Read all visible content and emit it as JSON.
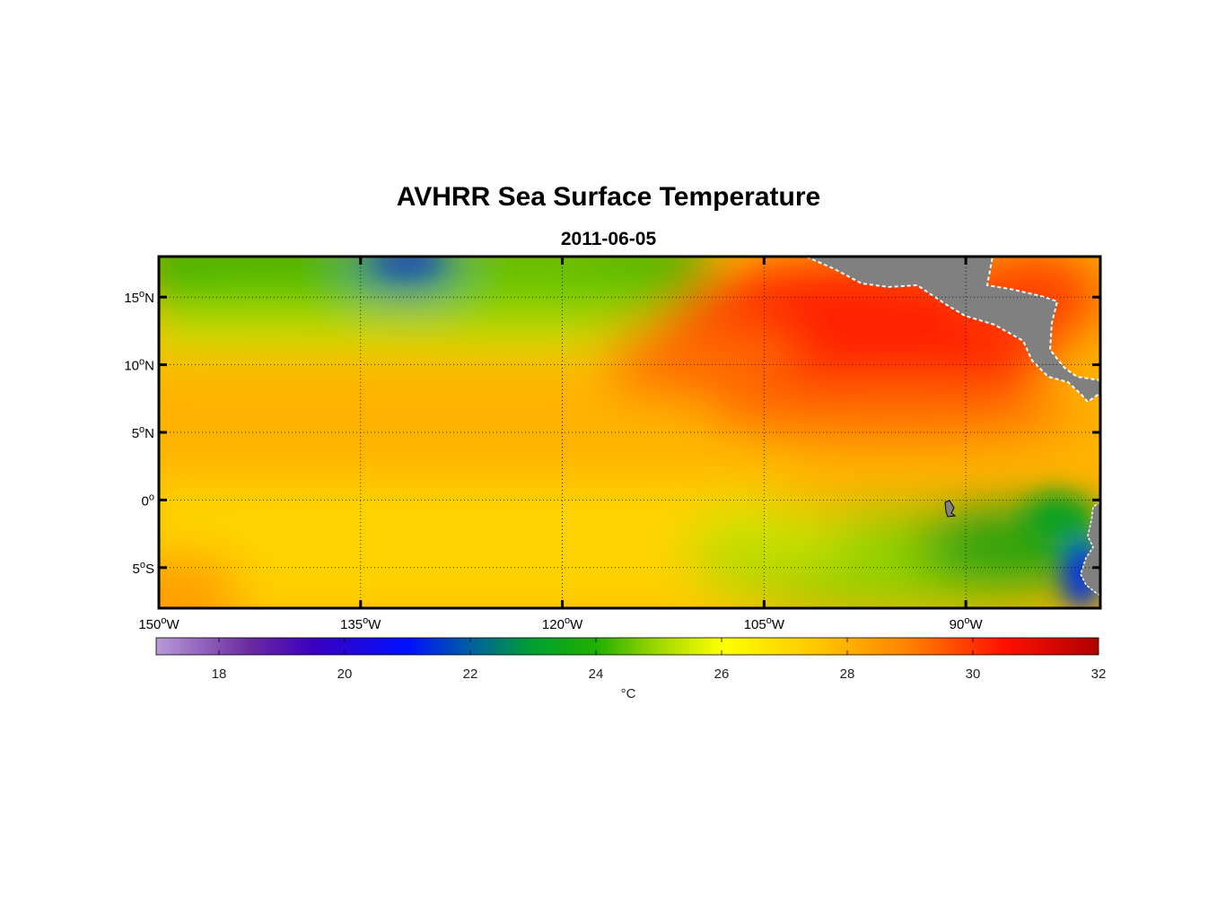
{
  "title": "AVHRR Sea Surface Temperature",
  "subtitle": "2011-06-05",
  "map": {
    "lat_range": [
      -8,
      18
    ],
    "lon_range": [
      -150,
      -80
    ],
    "lat_ticks": [
      {
        "value": 15,
        "num": "15",
        "hemi": "N"
      },
      {
        "value": 10,
        "num": "10",
        "hemi": "N"
      },
      {
        "value": 5,
        "num": "5",
        "hemi": "N"
      },
      {
        "value": 0,
        "num": "0",
        "hemi": ""
      },
      {
        "value": -5,
        "num": "5",
        "hemi": "S"
      }
    ],
    "lon_ticks": [
      {
        "value": -150,
        "num": "150",
        "hemi": "W"
      },
      {
        "value": -135,
        "num": "135",
        "hemi": "W"
      },
      {
        "value": -120,
        "num": "120",
        "hemi": "W"
      },
      {
        "value": -105,
        "num": "105",
        "hemi": "W"
      },
      {
        "value": -90,
        "num": "90",
        "hemi": "W"
      }
    ],
    "degree_symbol": "o",
    "land_color": "#808080",
    "grid_style": "dotted"
  },
  "colorbar": {
    "min": 17,
    "max": 32,
    "ticks": [
      "18",
      "20",
      "22",
      "24",
      "26",
      "28",
      "30",
      "32"
    ],
    "tick_values": [
      18,
      20,
      22,
      24,
      26,
      28,
      30,
      32
    ],
    "unit_label": "°C",
    "stops": [
      {
        "v": 17,
        "c": "#b89ad8"
      },
      {
        "v": 18.5,
        "c": "#6a2aa0"
      },
      {
        "v": 19.5,
        "c": "#3a00c0"
      },
      {
        "v": 21,
        "c": "#0010ff"
      },
      {
        "v": 22,
        "c": "#0060a0"
      },
      {
        "v": 23,
        "c": "#00a030"
      },
      {
        "v": 24,
        "c": "#20b000"
      },
      {
        "v": 25,
        "c": "#a0d800"
      },
      {
        "v": 26,
        "c": "#ffff00"
      },
      {
        "v": 27.5,
        "c": "#ffc800"
      },
      {
        "v": 29,
        "c": "#ff8000"
      },
      {
        "v": 30.5,
        "c": "#ff1000"
      },
      {
        "v": 32,
        "c": "#b00000"
      }
    ]
  }
}
